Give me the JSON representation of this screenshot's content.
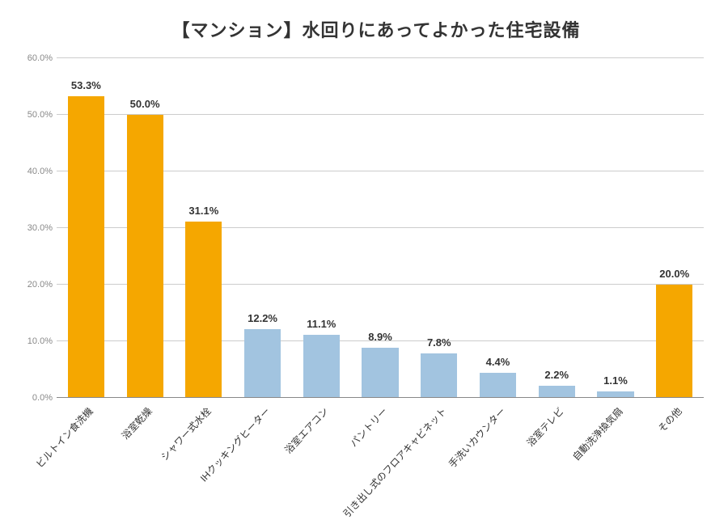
{
  "chart": {
    "type": "bar",
    "title": "【マンション】水回りにあってよかった住宅設備",
    "title_fontsize": 22,
    "title_color": "#333333",
    "background_color": "#ffffff",
    "grid_color": "#cccccc",
    "axis_label_color": "#888888",
    "ylim": [
      0,
      60
    ],
    "ytick_step": 10,
    "yticks": [
      "0.0%",
      "10.0%",
      "20.0%",
      "30.0%",
      "40.0%",
      "50.0%",
      "60.0%"
    ],
    "label_fontsize": 12,
    "value_label_fontsize": 13,
    "bar_width": 0.62,
    "categories": [
      "ビルトイン食洗機",
      "浴室乾燥",
      "シャワー式水栓",
      "IHクッキングヒーター",
      "浴室エアコン",
      "パントリー",
      "引き出し式のフロアキャビネット",
      "手洗いカウンター",
      "浴室テレビ",
      "自動洗浄換気扇",
      "その他"
    ],
    "values": [
      53.3,
      50.0,
      31.1,
      12.2,
      11.1,
      8.9,
      7.8,
      4.4,
      2.2,
      1.1,
      20.0
    ],
    "value_labels": [
      "53.3%",
      "50.0%",
      "31.1%",
      "12.2%",
      "11.1%",
      "8.9%",
      "7.8%",
      "4.4%",
      "2.2%",
      "1.1%",
      "20.0%"
    ],
    "bar_colors": [
      "#f5a700",
      "#f5a700",
      "#f5a700",
      "#a2c4e0",
      "#a2c4e0",
      "#a2c4e0",
      "#a2c4e0",
      "#a2c4e0",
      "#a2c4e0",
      "#a2c4e0",
      "#f5a700"
    ]
  }
}
